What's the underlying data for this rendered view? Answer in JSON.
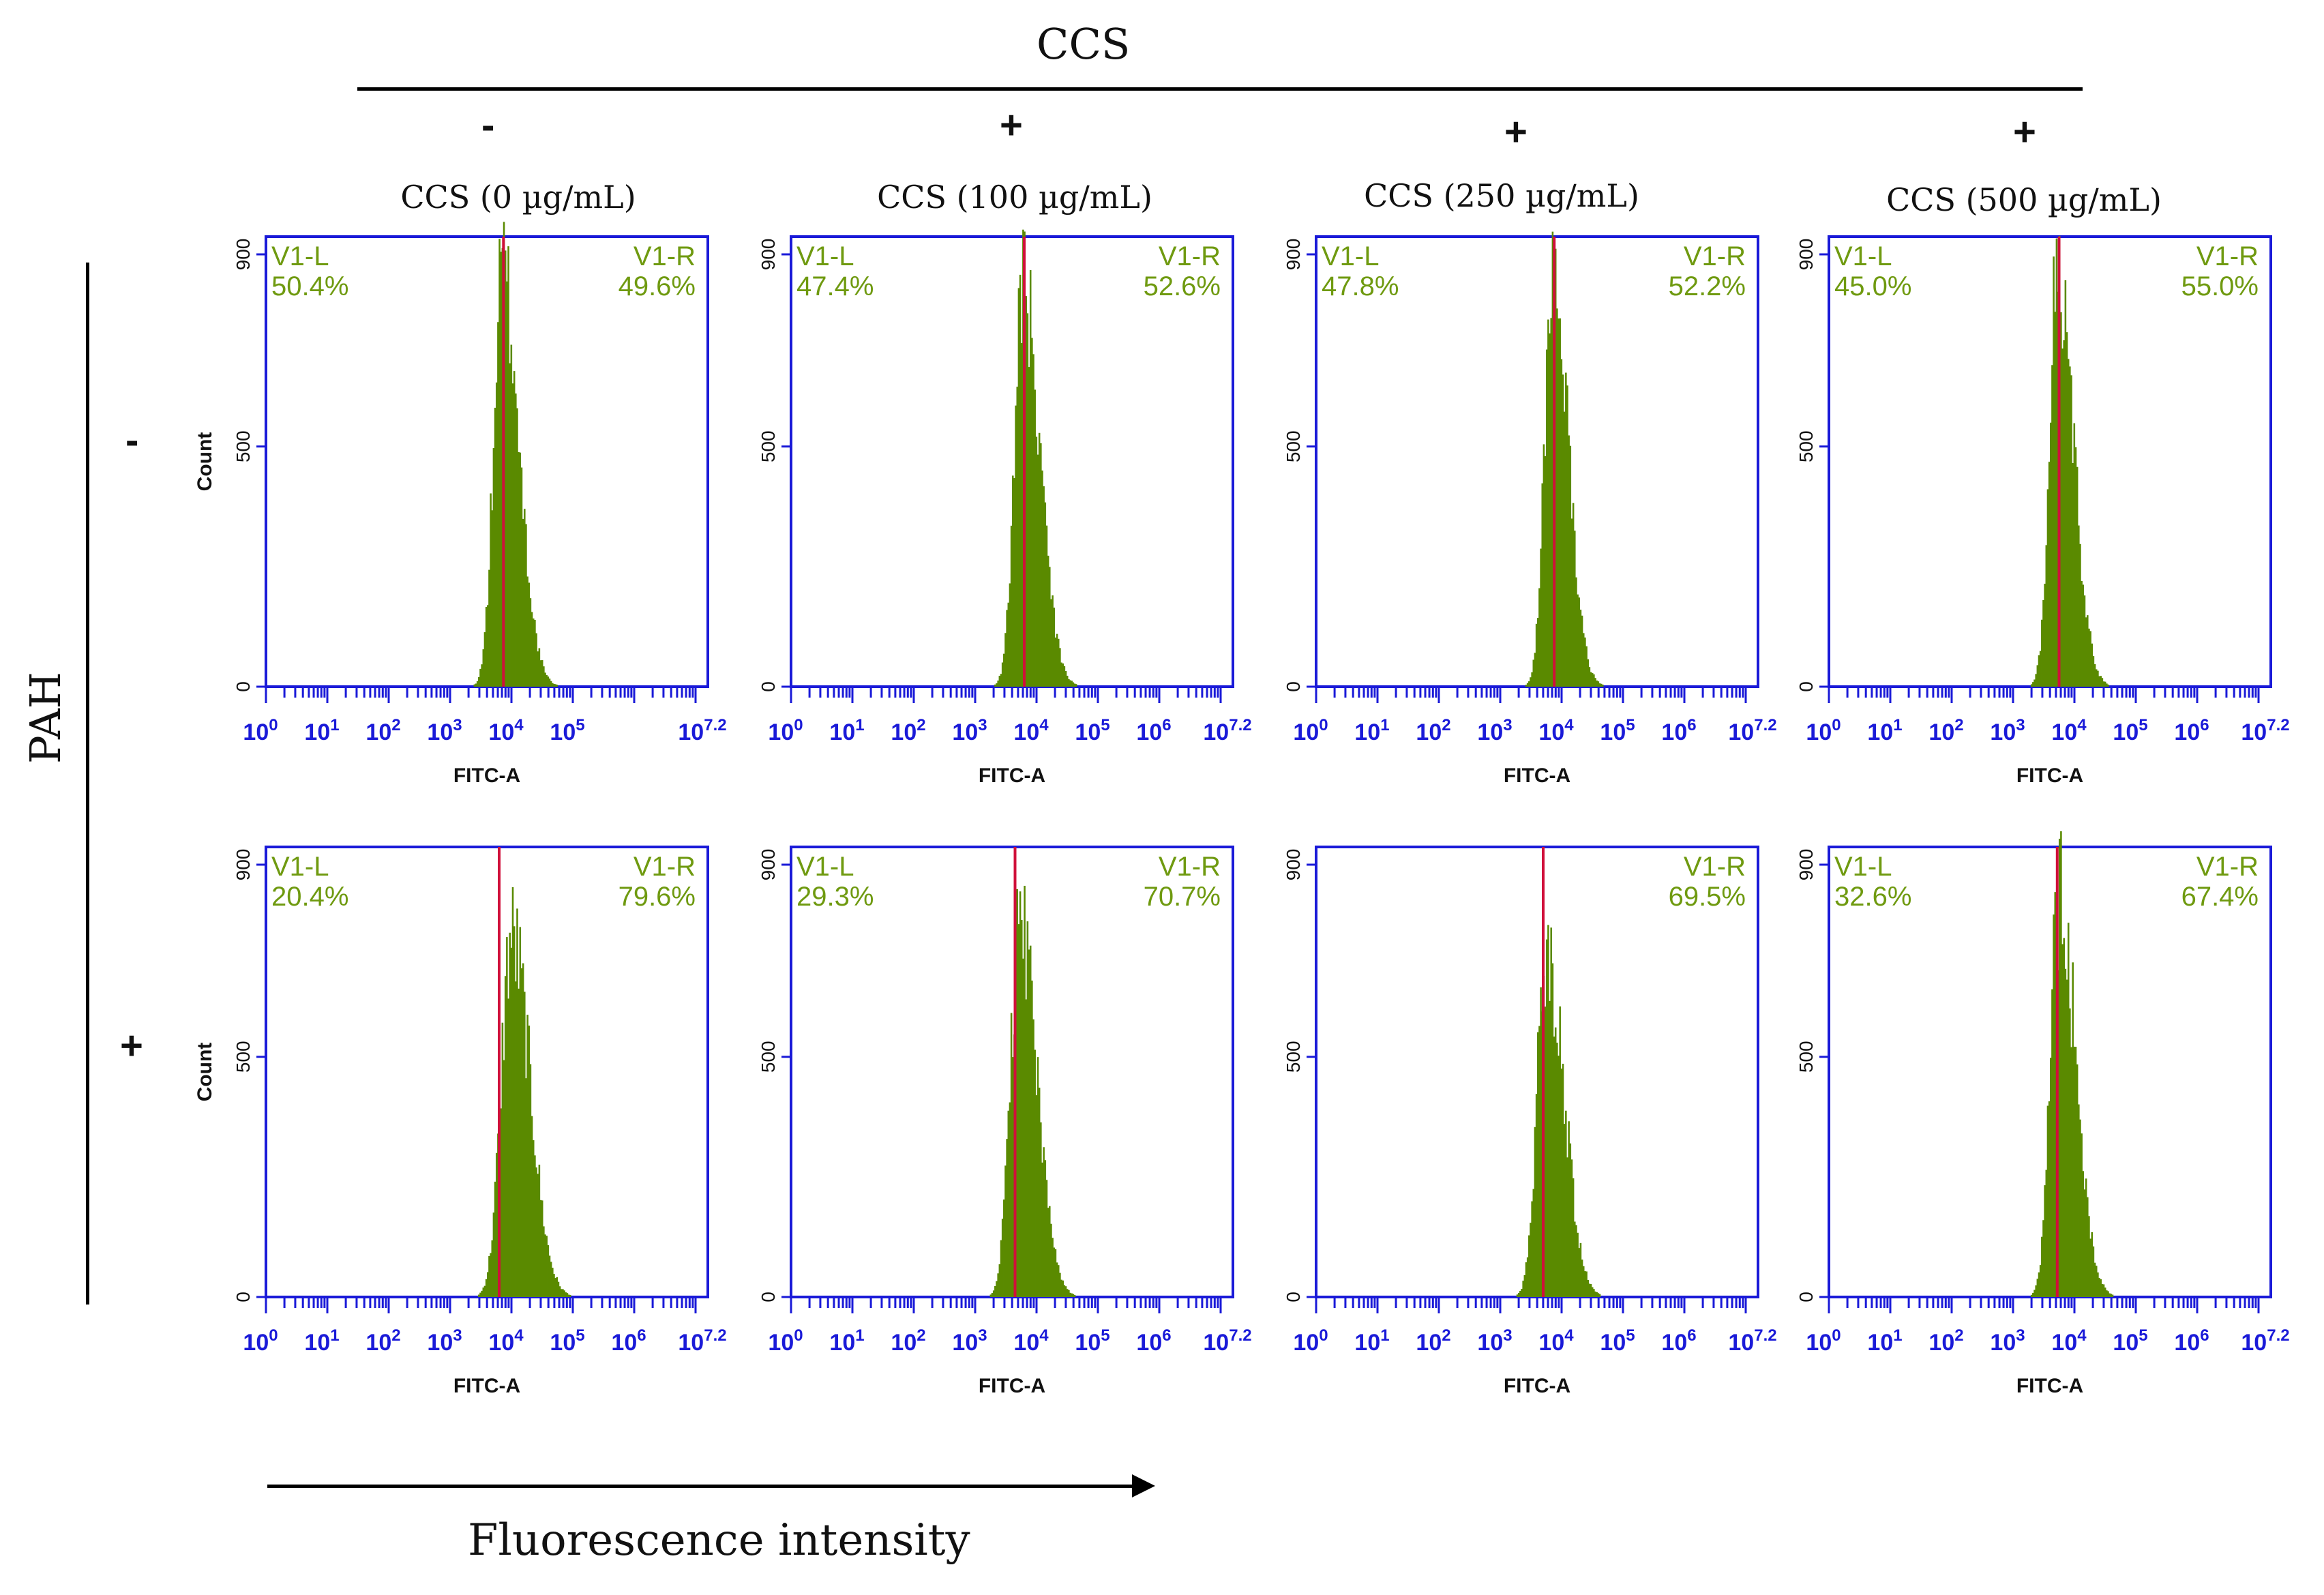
{
  "figure": {
    "ccs_header": "CCS",
    "pah_label": "PAH",
    "x_arrow_label": "Fluorescence intensity",
    "ccs_signs": [
      "-",
      "+",
      "+",
      "+"
    ],
    "pah_signs": [
      "-",
      "+"
    ],
    "column_titles": [
      "CCS (0 µg/mL)",
      "CCS (100 µg/mL)",
      "CCS (250 µg/mL)",
      "CCS (500 µg/mL)"
    ],
    "colors": {
      "frame": "#1a1ad8",
      "gate": "#d0103a",
      "histogram": "#5a8a00",
      "gate_label": "#6f9a10"
    }
  },
  "chart_data": [
    {
      "type": "histogram",
      "id": "r1c1",
      "title": "CCS (0 µg/mL)",
      "xlabel": "FITC-A",
      "ylabel": "Count",
      "yticks": [
        "0",
        "500",
        "900"
      ],
      "ylim": [
        0,
        900
      ],
      "xlim_log10": [
        0,
        7.2
      ],
      "xtick_bases": [
        "10",
        "10",
        "10",
        "10",
        "10",
        "10",
        "10"
      ],
      "xtick_exps": [
        "0",
        "1",
        "2",
        "3",
        "4",
        "5",
        "7.2"
      ],
      "gate_log10": 3.87,
      "peak_log10": 3.85,
      "peak_count": 860,
      "sigma_left": 0.14,
      "sigma_right": 0.27,
      "left_label": "V1-L",
      "left_value": "50.4%",
      "right_label": "V1-R",
      "right_value": "49.6%"
    },
    {
      "type": "histogram",
      "id": "r1c2",
      "title": "CCS (100 µg/mL)",
      "xlabel": "FITC-A",
      "ylabel": "",
      "yticks": [
        "0",
        "500",
        "900"
      ],
      "ylim": [
        0,
        900
      ],
      "xlim_log10": [
        0,
        7.2
      ],
      "xtick_bases": [
        "10",
        "10",
        "10",
        "10",
        "10",
        "10",
        "10"
      ],
      "xtick_exps": [
        "0",
        "1",
        "2",
        "3",
        "4",
        "5",
        "6",
        "7.2"
      ],
      "gate_log10": 3.8,
      "peak_log10": 3.78,
      "peak_count": 830,
      "sigma_left": 0.14,
      "sigma_right": 0.27,
      "left_label": "V1-L",
      "left_value": "47.4%",
      "right_label": "V1-R",
      "right_value": "52.6%"
    },
    {
      "type": "histogram",
      "id": "r1c3",
      "title": "CCS (250 µg/mL)",
      "xlabel": "FITC-A",
      "ylabel": "",
      "yticks": [
        "0",
        "500",
        "900"
      ],
      "ylim": [
        0,
        900
      ],
      "xlim_log10": [
        0,
        7.2
      ],
      "xtick_bases": [
        "10",
        "10",
        "10",
        "10",
        "10",
        "10",
        "10",
        "10"
      ],
      "xtick_exps": [
        "0",
        "1",
        "2",
        "3",
        "4",
        "5",
        "6",
        "7.2"
      ],
      "gate_log10": 3.88,
      "peak_log10": 3.85,
      "peak_count": 850,
      "sigma_left": 0.13,
      "sigma_right": 0.25,
      "left_label": "V1-L",
      "left_value": "47.8%",
      "right_label": "V1-R",
      "right_value": "52.2%"
    },
    {
      "type": "histogram",
      "id": "r1c4",
      "title": "CCS (500 µg/mL)",
      "xlabel": "FITC-A",
      "ylabel": "",
      "yticks": [
        "0",
        "500",
        "900"
      ],
      "ylim": [
        0,
        900
      ],
      "xlim_log10": [
        0,
        7.2
      ],
      "xtick_bases": [
        "10",
        "10",
        "10",
        "10",
        "10",
        "10",
        "10",
        "10"
      ],
      "xtick_exps": [
        "0",
        "1",
        "2",
        "3",
        "4",
        "5",
        "6",
        "7.2"
      ],
      "gate_log10": 3.75,
      "peak_log10": 3.72,
      "peak_count": 850,
      "sigma_left": 0.13,
      "sigma_right": 0.26,
      "left_label": "V1-L",
      "left_value": "45.0%",
      "right_label": "V1-R",
      "right_value": "55.0%"
    },
    {
      "type": "histogram",
      "id": "r2c1",
      "title": "",
      "xlabel": "FITC-A",
      "ylabel": "Count",
      "yticks": [
        "0",
        "500",
        "900"
      ],
      "ylim": [
        0,
        900
      ],
      "xlim_log10": [
        0,
        7.2
      ],
      "xtick_bases": [
        "10",
        "10",
        "10",
        "10",
        "10",
        "10",
        "10",
        "10"
      ],
      "xtick_exps": [
        "0",
        "1",
        "2",
        "3",
        "4",
        "5",
        "6",
        "7.2"
      ],
      "gate_log10": 3.8,
      "peak_log10": 4.0,
      "peak_count": 750,
      "sigma_left": 0.17,
      "sigma_right": 0.3,
      "left_label": "V1-L",
      "left_value": "20.4%",
      "right_label": "V1-R",
      "right_value": "79.6%"
    },
    {
      "type": "histogram",
      "id": "r2c2",
      "title": "",
      "xlabel": "FITC-A",
      "ylabel": "",
      "yticks": [
        "0",
        "500",
        "900"
      ],
      "ylim": [
        0,
        900
      ],
      "xlim_log10": [
        0,
        7.2
      ],
      "xtick_bases": [
        "10",
        "10",
        "10",
        "10",
        "10",
        "10",
        "10",
        "10"
      ],
      "xtick_exps": [
        "0",
        "1",
        "2",
        "3",
        "4",
        "5",
        "6",
        "7.2"
      ],
      "gate_log10": 3.65,
      "peak_log10": 3.72,
      "peak_count": 770,
      "sigma_left": 0.15,
      "sigma_right": 0.28,
      "left_label": "V1-L",
      "left_value": "29.3%",
      "right_label": "V1-R",
      "right_value": "70.7%"
    },
    {
      "type": "histogram",
      "id": "r2c3",
      "title": "",
      "xlabel": "FITC-A",
      "ylabel": "",
      "yticks": [
        "0",
        "500",
        "900"
      ],
      "ylim": [
        0,
        900
      ],
      "xlim_log10": [
        0,
        7.2
      ],
      "xtick_bases": [
        "10",
        "10",
        "10",
        "10",
        "10",
        "10",
        "10",
        "10"
      ],
      "xtick_exps": [
        "0",
        "1",
        "2",
        "3",
        "4",
        "5",
        "6",
        "7.2"
      ],
      "gate_log10": 3.7,
      "peak_log10": 3.75,
      "peak_count": 730,
      "sigma_left": 0.15,
      "sigma_right": 0.28,
      "left_label": "",
      "left_value": "",
      "right_label": "V1-R",
      "right_value": "69.5%"
    },
    {
      "type": "histogram",
      "id": "r2c4",
      "title": "",
      "xlabel": "FITC-A",
      "ylabel": "",
      "yticks": [
        "0",
        "500",
        "900"
      ],
      "ylim": [
        0,
        900
      ],
      "xlim_log10": [
        0,
        7.2
      ],
      "xtick_bases": [
        "10",
        "10",
        "10",
        "10",
        "10",
        "10",
        "10",
        "10"
      ],
      "xtick_exps": [
        "0",
        "1",
        "2",
        "3",
        "4",
        "5",
        "6",
        "7.2"
      ],
      "gate_log10": 3.72,
      "peak_log10": 3.75,
      "peak_count": 830,
      "sigma_left": 0.14,
      "sigma_right": 0.27,
      "left_label": "V1-L",
      "left_value": "32.6%",
      "right_label": "V1-R",
      "right_value": "67.4%"
    }
  ]
}
